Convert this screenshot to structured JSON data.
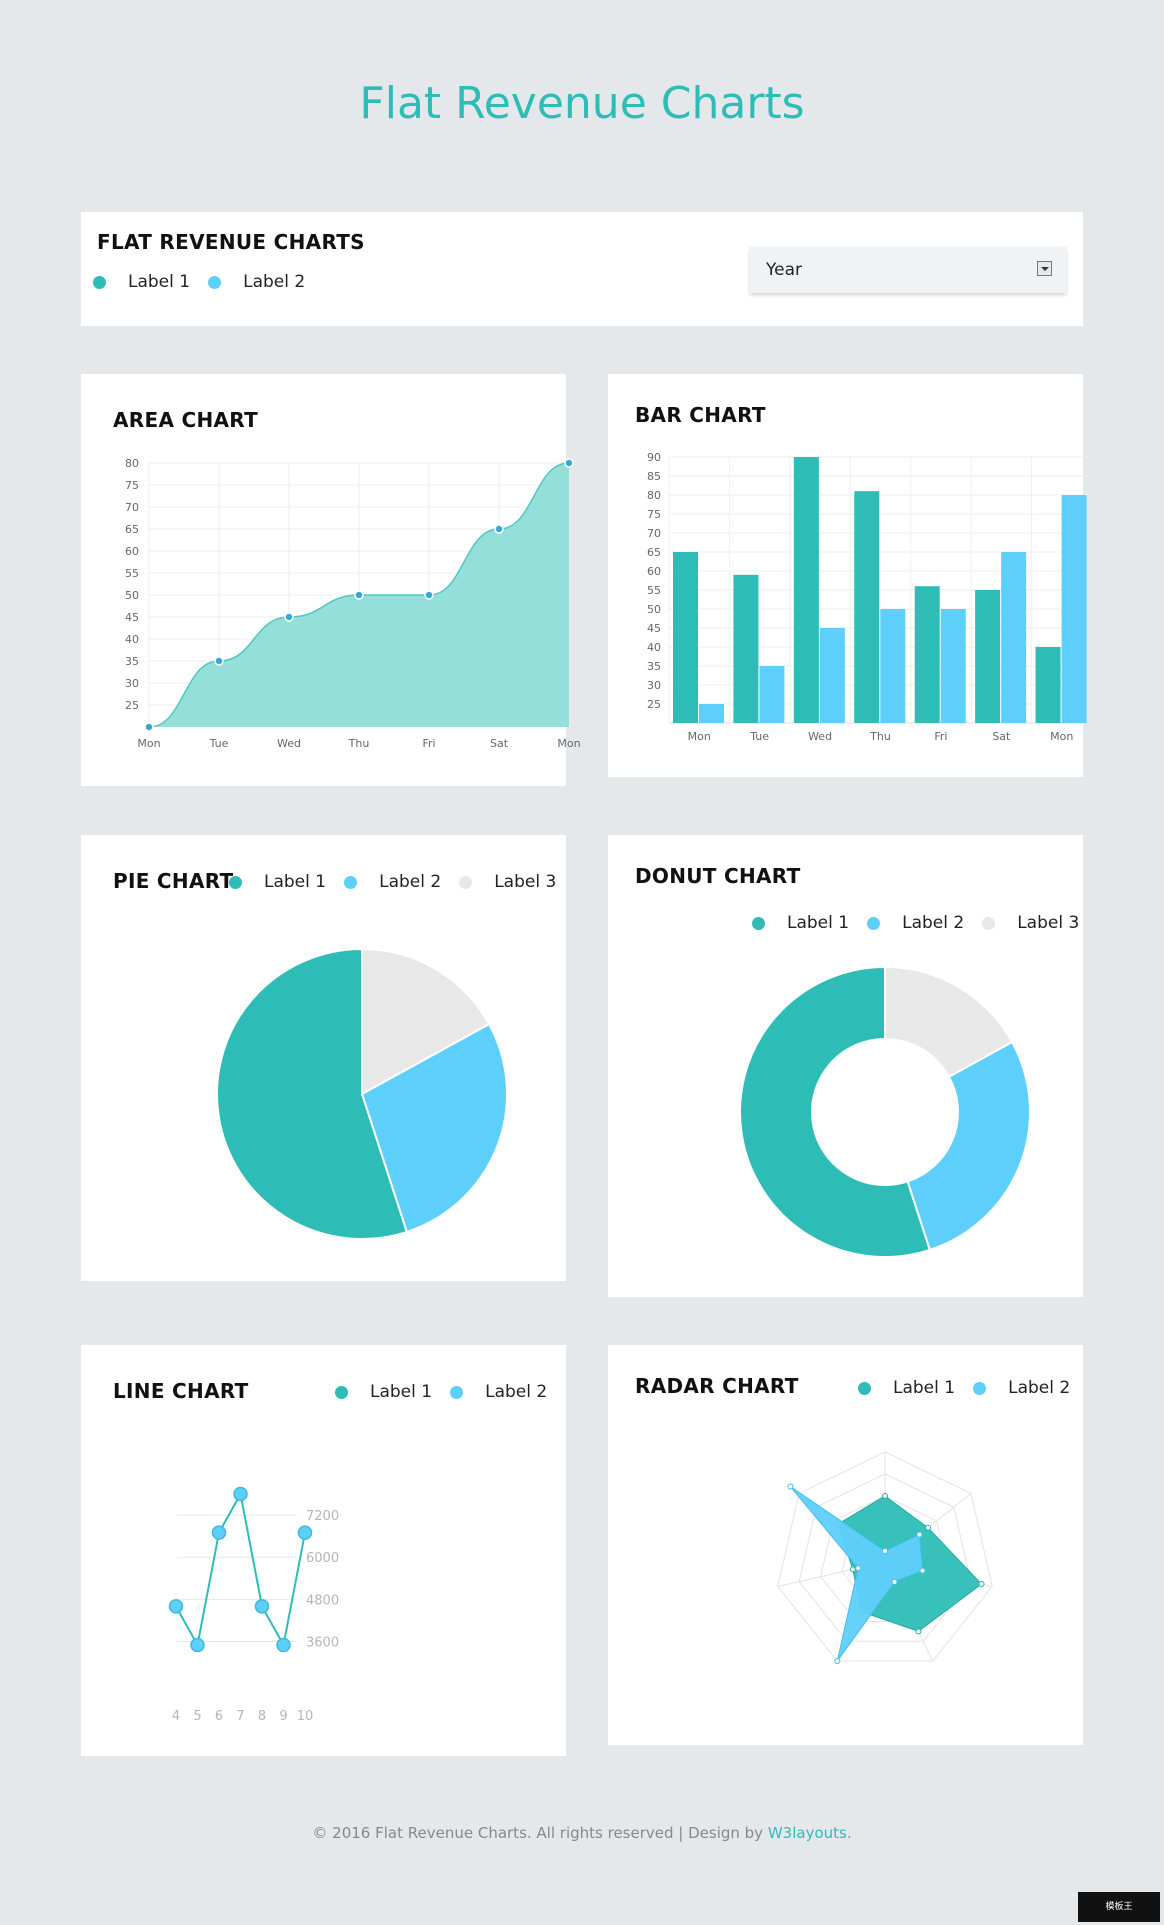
{
  "page": {
    "title": "Flat Revenue Charts"
  },
  "header_card": {
    "title": "FLAT REVENUE CHARTS",
    "legend": [
      "Label 1",
      "Label 2"
    ],
    "select": {
      "value": "Year"
    }
  },
  "colors": {
    "teal": "#2dbdb6",
    "blue": "#5ecffb",
    "grey": "#e8e8e8",
    "area_fill": "#95dfda"
  },
  "cards": {
    "area": {
      "title": "AREA CHART"
    },
    "bar": {
      "title": "BAR CHART"
    },
    "pie": {
      "title": "PIE CHART",
      "legend": [
        "Label 1",
        "Label 2",
        "Label 3"
      ]
    },
    "donut": {
      "title": "DONUT CHART",
      "legend": [
        "Label 1",
        "Label 2",
        "Label 3"
      ]
    },
    "line": {
      "title": "LINE CHART",
      "legend": [
        "Label 1",
        "Label 2"
      ]
    },
    "radar": {
      "title": "RADAR CHART",
      "legend": [
        "Label 1",
        "Label 2"
      ]
    }
  },
  "chart_data": [
    {
      "id": "area",
      "type": "area",
      "categories": [
        "Mon",
        "Tue",
        "Wed",
        "Thu",
        "Fri",
        "Sat",
        "Mon"
      ],
      "values": [
        20,
        35,
        45,
        50,
        50,
        65,
        80
      ],
      "ylim": [
        20,
        80
      ],
      "yticks": [
        25,
        30,
        35,
        40,
        45,
        50,
        55,
        60,
        65,
        70,
        75,
        80
      ],
      "grid": true
    },
    {
      "id": "bar",
      "type": "bar",
      "categories": [
        "Mon",
        "Tue",
        "Wed",
        "Thu",
        "Fri",
        "Sat",
        "Mon"
      ],
      "series": [
        {
          "values": [
            65,
            59,
            90,
            81,
            56,
            55,
            40
          ]
        },
        {
          "values": [
            25,
            35,
            45,
            50,
            50,
            65,
            80
          ]
        }
      ],
      "ylim": [
        20,
        90
      ],
      "yticks": [
        25,
        30,
        35,
        40,
        45,
        50,
        55,
        60,
        65,
        70,
        75,
        80,
        85,
        90
      ],
      "grid": true
    },
    {
      "id": "pie",
      "type": "pie",
      "labels": [
        "Label 1",
        "Label 2",
        "Label 3"
      ],
      "values": [
        55,
        28,
        17
      ]
    },
    {
      "id": "donut",
      "type": "pie",
      "labels": [
        "Label 1",
        "Label 2",
        "Label 3"
      ],
      "values": [
        55,
        28,
        17
      ]
    },
    {
      "id": "line",
      "type": "line",
      "x": [
        4,
        5,
        6,
        7,
        8,
        9,
        10
      ],
      "values": [
        4600,
        3500,
        6700,
        7800,
        4600,
        3500,
        6700
      ],
      "yticks": [
        3600,
        4800,
        6000,
        7200
      ],
      "ylim": [
        3000,
        8000
      ]
    },
    {
      "id": "radar",
      "type": "radar",
      "axes": 7,
      "max": 100,
      "series": [
        {
          "name": "Label 1",
          "values": [
            60,
            50,
            90,
            70,
            50,
            30,
            55
          ]
        },
        {
          "name": "Label 2",
          "values": [
            10,
            40,
            35,
            20,
            100,
            25,
            110
          ]
        }
      ]
    }
  ]
}
